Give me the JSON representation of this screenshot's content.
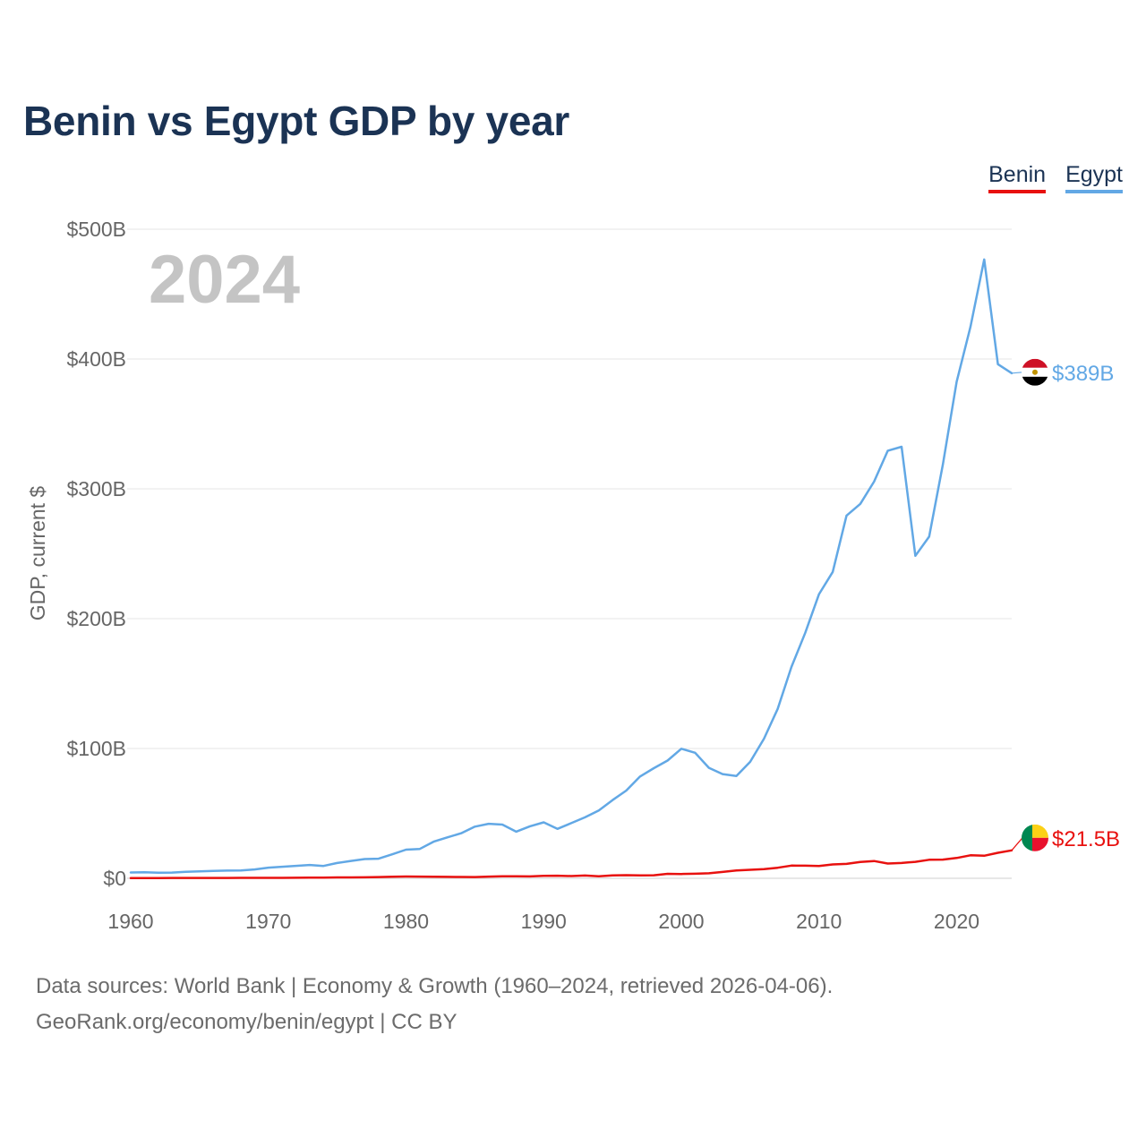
{
  "title": "Benin vs Egypt GDP by year",
  "legend": [
    {
      "label": "Benin",
      "color": "#e8110f"
    },
    {
      "label": "Egypt",
      "color": "#62a8e5"
    }
  ],
  "footer": {
    "line1": "Data sources: World Bank | Economy & Growth (1960–2024, retrieved 2026-04-06).",
    "line2": "GeoRank.org/economy/benin/egypt | CC BY"
  },
  "flags": {
    "egypt": {
      "icon": "egypt-flag-icon",
      "colors": [
        "#ce1126",
        "#ffffff",
        "#000000",
        "#c09300"
      ]
    },
    "benin": {
      "icon": "benin-flag-icon",
      "colors": [
        "#008751",
        "#fcd116",
        "#e8112d"
      ]
    }
  },
  "chart_data": {
    "type": "line",
    "title": "Benin vs Egypt GDP by year",
    "xlabel": "",
    "ylabel": "GDP, current $",
    "year_label": "2024",
    "xlim": [
      1960,
      2024
    ],
    "ylim": [
      0,
      500
    ],
    "y_unit": "billions of current US$",
    "x_ticks": [
      1960,
      1970,
      1980,
      1990,
      2000,
      2010,
      2020
    ],
    "x_tick_labels": [
      "1960",
      "1970",
      "1980",
      "1990",
      "2000",
      "2010",
      "2020"
    ],
    "y_ticks": [
      0,
      100,
      200,
      300,
      400,
      500
    ],
    "y_tick_labels": [
      "$0",
      "$100B",
      "$200B",
      "$300B",
      "$400B",
      "$500B"
    ],
    "grid": true,
    "legend_position": "top-right",
    "x": [
      1960,
      1961,
      1962,
      1963,
      1964,
      1965,
      1966,
      1967,
      1968,
      1969,
      1970,
      1971,
      1972,
      1973,
      1974,
      1975,
      1976,
      1977,
      1978,
      1979,
      1980,
      1981,
      1982,
      1983,
      1984,
      1985,
      1986,
      1987,
      1988,
      1989,
      1990,
      1991,
      1992,
      1993,
      1994,
      1995,
      1996,
      1997,
      1998,
      1999,
      2000,
      2001,
      2002,
      2003,
      2004,
      2005,
      2006,
      2007,
      2008,
      2009,
      2010,
      2011,
      2012,
      2013,
      2014,
      2015,
      2016,
      2017,
      2018,
      2019,
      2020,
      2021,
      2022,
      2023,
      2024
    ],
    "series": [
      {
        "name": "Egypt",
        "color": "#62a8e5",
        "end_label": "$389B",
        "values": [
          4.5,
          4.6,
          4.3,
          4.4,
          5.0,
          5.3,
          5.7,
          5.9,
          6.1,
          6.8,
          8.2,
          8.9,
          9.6,
          10.3,
          9.5,
          11.8,
          13.4,
          14.8,
          15.1,
          18.5,
          22.1,
          22.6,
          28.2,
          31.5,
          34.7,
          39.8,
          42.0,
          41.4,
          35.9,
          40.1,
          43.1,
          38.1,
          42.5,
          47.0,
          52.3,
          60.2,
          67.6,
          78.4,
          84.8,
          90.7,
          99.8,
          96.7,
          85.1,
          80.3,
          78.8,
          89.7,
          107.5,
          130.5,
          162.8,
          189.1,
          218.9,
          236.0,
          279.4,
          288.4,
          305.6,
          329.4,
          332.4,
          248.4,
          263.2,
          318.7,
          382.5,
          424.7,
          476.7,
          396.0,
          389.1
        ]
      },
      {
        "name": "Benin",
        "color": "#e8110f",
        "end_label": "$21.5B",
        "values": [
          0.23,
          0.24,
          0.24,
          0.26,
          0.27,
          0.29,
          0.3,
          0.31,
          0.32,
          0.33,
          0.33,
          0.34,
          0.41,
          0.5,
          0.55,
          0.66,
          0.68,
          0.76,
          0.98,
          1.22,
          1.41,
          1.29,
          1.27,
          1.1,
          1.05,
          0.99,
          1.34,
          1.57,
          1.55,
          1.43,
          1.85,
          1.99,
          1.69,
          2.16,
          1.56,
          2.25,
          2.38,
          2.26,
          2.34,
          3.43,
          3.34,
          3.49,
          3.85,
          4.88,
          5.99,
          6.55,
          7.05,
          8.17,
          9.79,
          9.73,
          9.54,
          10.7,
          11.13,
          12.53,
          13.28,
          11.39,
          11.82,
          12.7,
          14.26,
          14.39,
          15.65,
          17.69,
          17.4,
          19.67,
          21.5
        ]
      }
    ]
  }
}
